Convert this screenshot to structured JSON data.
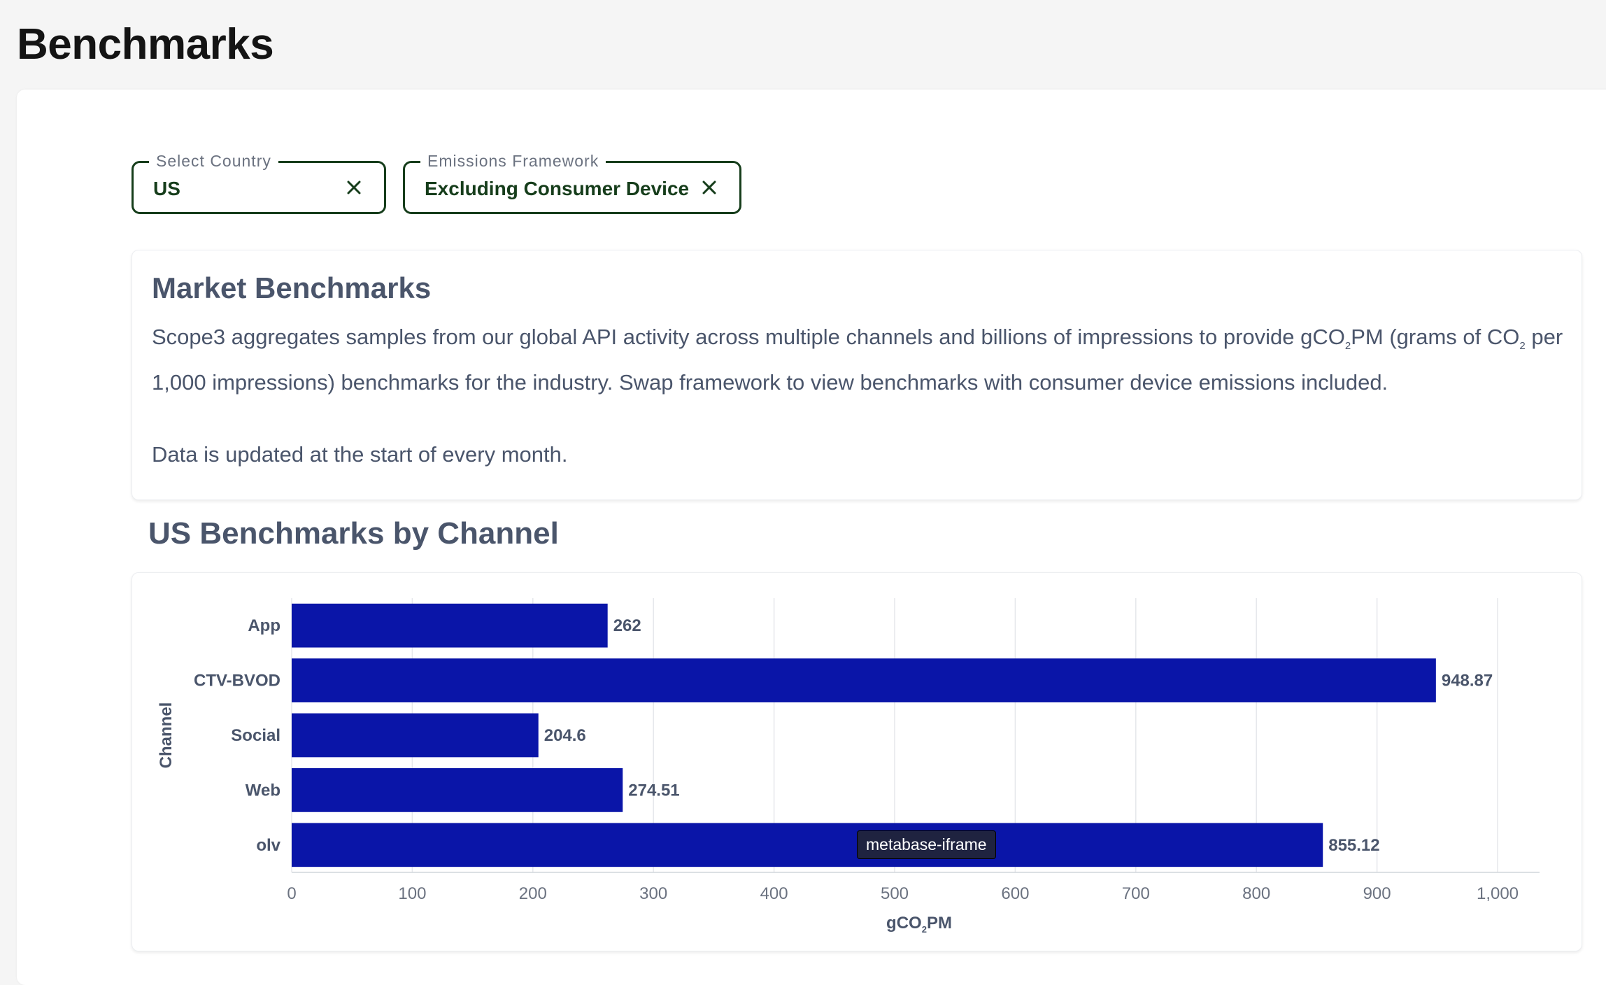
{
  "page": {
    "title": "Benchmarks"
  },
  "filters": {
    "country": {
      "label": "Select Country",
      "value": "US"
    },
    "framework": {
      "label": "Emissions Framework",
      "value": "Excluding Consumer Device"
    }
  },
  "market": {
    "title": "Market Benchmarks",
    "p1_a": "Scope3 aggregates samples from our global API activity across multiple channels and billions of impressions to provide gCO",
    "p1_sub1": "2",
    "p1_b": "PM (grams of CO",
    "p1_sub2": "2",
    "p1_c": " per 1,000 impressions) benchmarks for the industry. Swap framework to view benchmarks with consumer device emissions included.",
    "p2": "Data is updated at the start of every month."
  },
  "section": {
    "title": "US Benchmarks by Channel"
  },
  "tooltip": {
    "text": "metabase-iframe"
  },
  "colors": {
    "bar": "#0a15a8",
    "accent": "#163d1b",
    "text_muted": "#4a556b"
  },
  "chart_data": {
    "type": "bar",
    "orientation": "horizontal",
    "categories": [
      "App",
      "CTV-BVOD",
      "Social",
      "Web",
      "olv"
    ],
    "values": [
      262,
      948.87,
      204.6,
      274.51,
      855.12
    ],
    "value_labels": [
      "262",
      "948.87",
      "204.6",
      "274.51",
      "855.12"
    ],
    "xlabel_main": "gCO",
    "xlabel_sub": "2",
    "xlabel_tail": "PM",
    "ylabel": "Channel",
    "xlim": [
      0,
      1000
    ],
    "xticks": [
      0,
      100,
      200,
      300,
      400,
      500,
      600,
      700,
      800,
      900,
      1000
    ],
    "xtick_labels": [
      "0",
      "100",
      "200",
      "300",
      "400",
      "500",
      "600",
      "700",
      "800",
      "900",
      "1,000"
    ],
    "grid": true
  }
}
